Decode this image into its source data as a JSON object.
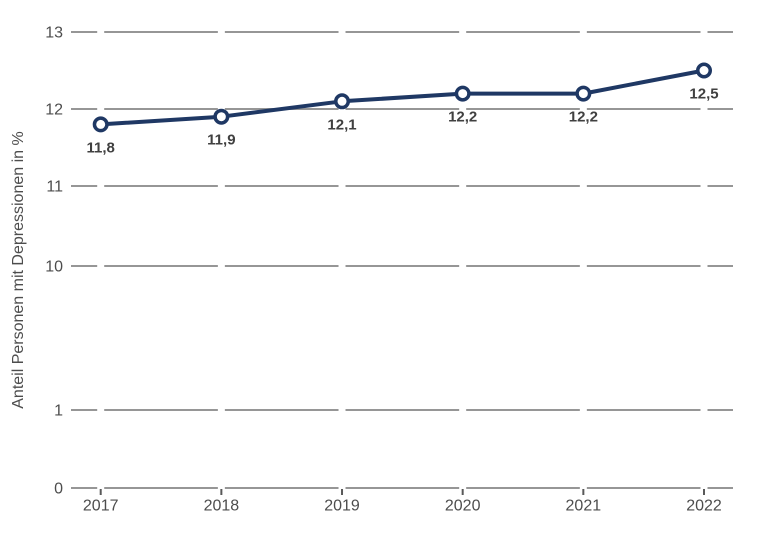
{
  "chart_data": {
    "type": "line",
    "title": "",
    "ylabel": "Anteil Personen mit Depressionen in %",
    "xlabel": "",
    "categories": [
      "2017",
      "2018",
      "2019",
      "2020",
      "2021",
      "2022"
    ],
    "series": [
      {
        "name": "Anteil Personen mit Depressionen",
        "values": [
          11.8,
          11.9,
          12.1,
          12.2,
          12.2,
          12.5
        ],
        "point_labels": [
          "11,8",
          "11,9",
          "12,1",
          "12,2",
          "12,2",
          "12,5"
        ]
      }
    ],
    "y_axis_ticks": [
      "13",
      "12",
      "11",
      "10",
      "1",
      "0"
    ],
    "axis_note": "broken y-axis: values compressed between 1 and 10",
    "grid": true,
    "legend": false,
    "marker": "open-circle",
    "colors": {
      "line": "#1f3864",
      "marker_fill": "#ffffff",
      "grid": "#969696",
      "tick_mark": "#595959",
      "point_label_text": "#404040",
      "axis_text": "#4d4d4d",
      "background": "#ffffff"
    }
  }
}
